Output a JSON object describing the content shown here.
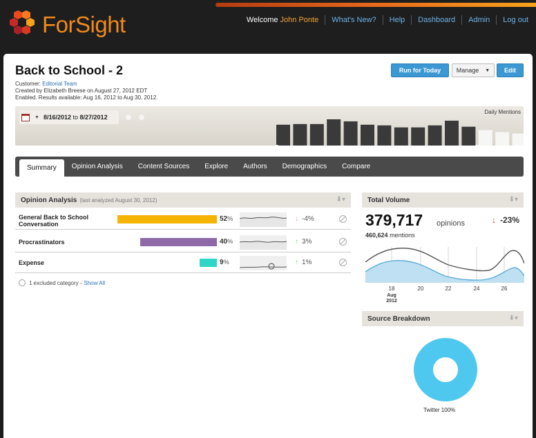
{
  "header": {
    "logo_text": "ForSight",
    "welcome": "Welcome",
    "user": "John Ponte",
    "nav": [
      "What's New?",
      "Help",
      "Dashboard",
      "Admin",
      "Log out"
    ]
  },
  "page": {
    "title": "Back to School - 2",
    "customer_label": "Customer:",
    "customer": "Editorial Team",
    "created": "Created by Elizabeth Breese on August 27, 2012 EDT",
    "enabled": "Enabled. Results available: Aug 16, 2012 to Aug 30, 2012."
  },
  "actions": {
    "run": "Run for Today",
    "manage": "Manage",
    "edit": "Edit"
  },
  "timeline": {
    "start": "8/16/2012",
    "to": "to",
    "end": "8/27/2012",
    "label": "Daily Mentions",
    "daily_values": [
      62,
      64,
      64,
      78,
      72,
      62,
      60,
      54,
      54,
      60,
      74,
      56,
      46,
      40,
      36
    ],
    "selected_count": 12
  },
  "tabs": [
    "Summary",
    "Opinion Analysis",
    "Content Sources",
    "Explore",
    "Authors",
    "Demographics",
    "Compare"
  ],
  "opinion": {
    "title": "Opinion Analysis",
    "subtitle": "(last analyzed August 30, 2012)",
    "rows": [
      {
        "name": "General Back to School Conversation",
        "pct": "52",
        "pct_value": 52,
        "color": "#f5b400",
        "change": "-4",
        "direction": "down"
      },
      {
        "name": "Procrastinators",
        "pct": "40",
        "pct_value": 40,
        "color": "#8e6ba8",
        "change": "3",
        "direction": "up"
      },
      {
        "name": "Expense",
        "pct": "9",
        "pct_value": 9,
        "color": "#2fd6c8",
        "change": "1",
        "direction": "up"
      }
    ],
    "pct_symbol": "%",
    "excluded": "1 excluded category -",
    "show_all": "Show All"
  },
  "volume": {
    "title": "Total Volume",
    "total": "379,717",
    "unit": "opinions",
    "change": "-23%",
    "mentions_value": "460,624",
    "mentions_label": "mentions",
    "x_ticks": [
      "18",
      "20",
      "22",
      "24",
      "26"
    ],
    "x_month": "Aug",
    "x_year": "2012",
    "chart_colors": {
      "fill": "#bfe0f2",
      "line": "#5aaad6",
      "total": "#555555"
    }
  },
  "source": {
    "title": "Source Breakdown",
    "label": "Twitter 100%",
    "color": "#4fc8f0"
  }
}
